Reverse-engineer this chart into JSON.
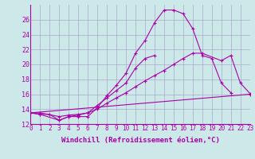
{
  "background_color": "#cce8e8",
  "grid_color": "#aaaacc",
  "line_color": "#aa00aa",
  "xlim": [
    0,
    23
  ],
  "ylim": [
    12,
    28
  ],
  "xtick_labels": [
    "0",
    "1",
    "2",
    "3",
    "4",
    "5",
    "6",
    "7",
    "8",
    "9",
    "10",
    "11",
    "12",
    "13",
    "14",
    "15",
    "16",
    "17",
    "18",
    "19",
    "20",
    "21",
    "22",
    "23"
  ],
  "ytick_values": [
    12,
    14,
    16,
    18,
    20,
    22,
    24,
    26
  ],
  "xlabel": "Windchill (Refroidissement éolien,°C)",
  "xlabel_fontsize": 6.5,
  "xtick_fontsize": 5.5,
  "ytick_fontsize": 6.0,
  "series": [
    {
      "x": [
        0,
        1,
        2,
        3,
        4,
        5,
        6,
        7,
        8,
        9,
        10,
        11,
        12,
        13,
        14,
        15,
        16,
        17,
        18,
        19,
        20,
        21
      ],
      "y": [
        13.5,
        13.3,
        13.3,
        12.5,
        13.0,
        13.0,
        13.0,
        14.2,
        15.8,
        17.2,
        18.8,
        21.5,
        23.2,
        25.6,
        27.3,
        27.3,
        26.8,
        24.8,
        21.2,
        20.8,
        17.5,
        16.2
      ]
    },
    {
      "x": [
        0,
        1,
        3,
        4,
        5,
        6,
        7,
        8,
        9,
        10,
        11,
        12,
        13
      ],
      "y": [
        13.5,
        13.3,
        12.5,
        13.0,
        13.2,
        13.5,
        14.5,
        15.5,
        16.5,
        17.5,
        19.5,
        20.8,
        21.2
      ]
    },
    {
      "x": [
        0,
        1,
        3,
        4,
        5,
        6,
        7,
        8,
        9,
        10,
        11,
        12,
        13,
        14,
        15,
        16,
        17,
        18,
        20,
        21,
        22,
        23
      ],
      "y": [
        13.5,
        13.5,
        13.0,
        13.2,
        13.3,
        13.5,
        14.0,
        14.8,
        15.5,
        16.2,
        17.0,
        17.8,
        18.5,
        19.2,
        20.0,
        20.8,
        21.5,
        21.5,
        20.5,
        21.2,
        17.5,
        16.1
      ]
    },
    {
      "x": [
        0,
        23
      ],
      "y": [
        13.5,
        16.0
      ]
    }
  ]
}
